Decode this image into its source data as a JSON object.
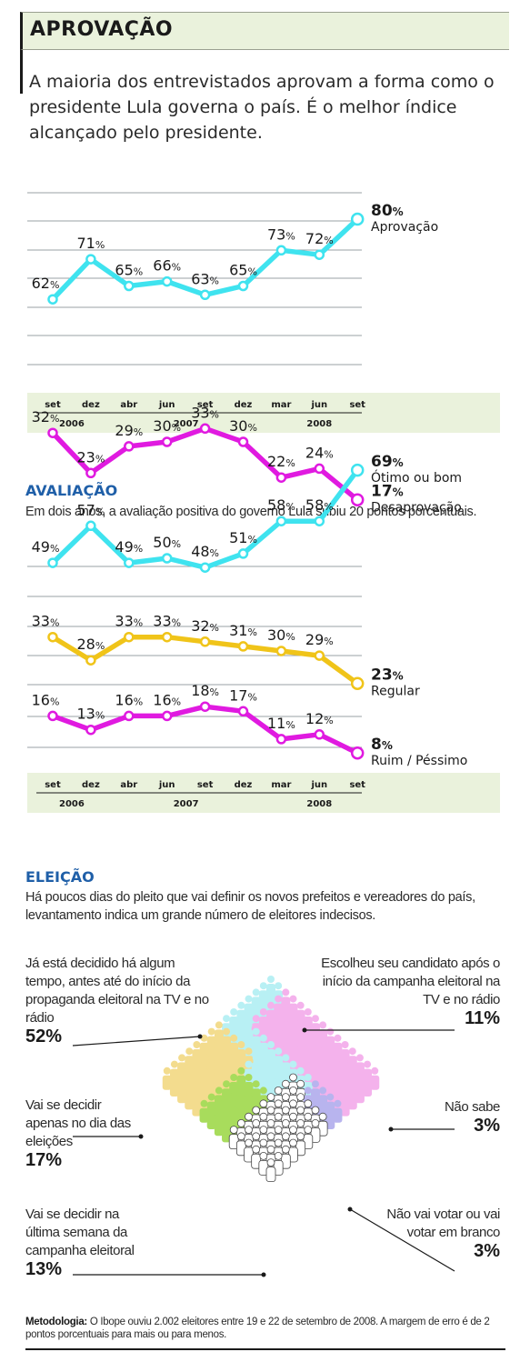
{
  "header": {
    "title": "APROVAÇÃO",
    "intro": "A maioria dos entrevistados aprovam a forma como o presidente Lula governa o país. É o melhor índice alcançado pelo presidente."
  },
  "avaliacao": {
    "title": "AVALIAÇÃO",
    "text": "Em dois anos, a avaliação positiva do governo Lula subiu 20 pontos porcentuais."
  },
  "eleicao": {
    "title": "ELEIÇÃO",
    "text": "Há poucos dias do pleito que vai definir os novos prefeitos e vereadores do país, levantamento indica um grande número de eleitores indecisos."
  },
  "methodology": {
    "label": "Metodologia:",
    "text": " O Ibope ouviu 2.002 eleitores entre 19 e 22 de setembro de 2008. A margem de erro é de 2 pontos porcentuais  para mais ou para menos."
  },
  "colors": {
    "cyan": "#3fe3ef",
    "magenta": "#e01ae0",
    "yellow": "#f0c419",
    "grid": "#9aa0a6",
    "axis_band": "#eaf2dc"
  },
  "chart_data": [
    {
      "type": "line",
      "x": [
        "set",
        "dez",
        "abr",
        "jun",
        "set",
        "dez",
        "mar",
        "jun",
        "set"
      ],
      "years": [
        {
          "label": "2006",
          "from": 0,
          "to": 1
        },
        {
          "label": "2007",
          "from": 2,
          "to": 5
        },
        {
          "label": "2008",
          "from": 6,
          "to": 8
        }
      ],
      "ylim": [
        0,
        100
      ],
      "grid": true,
      "series": [
        {
          "name": "Aprovação",
          "color": "#3fe3ef",
          "values": [
            62,
            71,
            65,
            66,
            63,
            65,
            73,
            72,
            80
          ]
        },
        {
          "name": "Desaprovação",
          "color": "#e01ae0",
          "values": [
            32,
            23,
            29,
            30,
            33,
            30,
            22,
            24,
            17
          ]
        }
      ]
    },
    {
      "type": "line",
      "x": [
        "set",
        "dez",
        "abr",
        "jun",
        "set",
        "dez",
        "mar",
        "jun",
        "set"
      ],
      "years": [
        {
          "label": "2006",
          "from": 0,
          "to": 1
        },
        {
          "label": "2007",
          "from": 2,
          "to": 5
        },
        {
          "label": "2008",
          "from": 6,
          "to": 8
        }
      ],
      "ylim": [
        0,
        80
      ],
      "grid": true,
      "series": [
        {
          "name": "Ótimo ou bom",
          "color": "#3fe3ef",
          "values": [
            49,
            57,
            49,
            50,
            48,
            51,
            58,
            58,
            69
          ]
        },
        {
          "name": "Regular",
          "color": "#f0c419",
          "values": [
            33,
            28,
            33,
            33,
            32,
            31,
            30,
            29,
            23
          ]
        },
        {
          "name": "Ruim / Péssimo",
          "color": "#e01ae0",
          "values": [
            16,
            13,
            16,
            16,
            18,
            17,
            11,
            12,
            8
          ]
        }
      ]
    },
    {
      "type": "pie",
      "categories": [
        "Já está decidido há algum tempo, antes até do início da propaganda eleitoral na TV e no rádio",
        "Escolheu seu candidato após o início da campanha eleitoral na TV e no rádio",
        "Não sabe",
        "Não vai votar ou vai votar em branco",
        "Vai se decidir na última semana da campanha eleitoral",
        "Vai se decidir apenas no dia das eleições"
      ],
      "values": [
        52,
        11,
        3,
        3,
        13,
        17
      ],
      "pct_labels": [
        "52%",
        "11%",
        "3%",
        "3%",
        "13%",
        "17%"
      ],
      "colors": [
        "#b8f0f4",
        "#f4b2ec",
        "#b8b4ee",
        "#ffffff",
        "#a8dc5c",
        "#f3dc8e"
      ]
    }
  ]
}
